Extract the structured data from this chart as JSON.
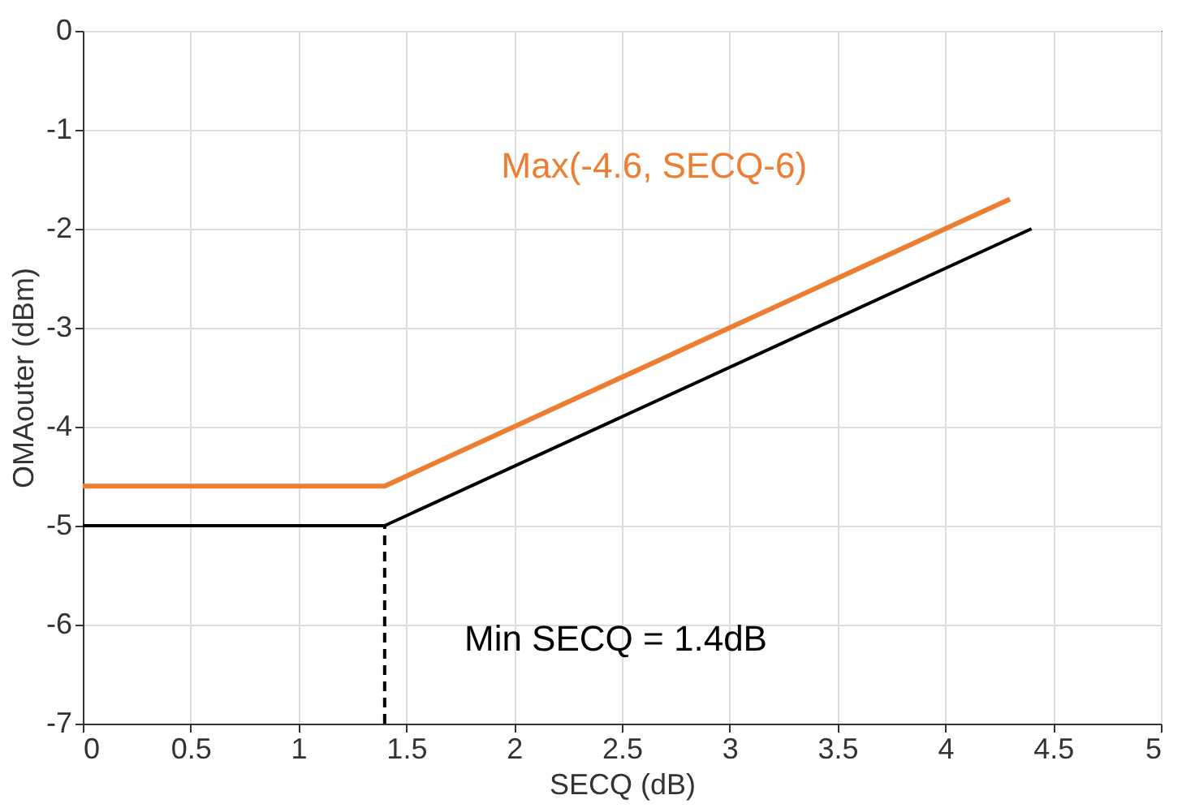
{
  "chart_data": {
    "type": "line",
    "xlabel": "SECQ (dB)",
    "ylabel": "OMAouter (dBm)",
    "xlim": [
      0,
      5
    ],
    "xticks": [
      0,
      0.5,
      1,
      1.5,
      2,
      2.5,
      3,
      3.5,
      4,
      4.5,
      5
    ],
    "ylim": [
      -7,
      0
    ],
    "yticks": [
      -7,
      -6,
      -5,
      -4,
      -3,
      -2,
      -1,
      0
    ],
    "grid": true,
    "series": [
      {
        "x": [
          0,
          1.4,
          4.4
        ],
        "values": [
          -5,
          -5,
          -2
        ],
        "color": "#000000"
      },
      {
        "name": "Max(-4.6, SECQ-6)",
        "x": [
          0,
          1.4,
          4.3
        ],
        "values": [
          -4.6,
          -4.6,
          -1.7
        ],
        "color": "#ed7d31"
      },
      {
        "x": [
          1.4,
          1.4
        ],
        "values": [
          -7,
          -5
        ],
        "color": "#000000",
        "line_style": "dashed"
      }
    ],
    "line_style": "solid",
    "annotations": [
      "Min SECQ = 1.4dB"
    ]
  }
}
